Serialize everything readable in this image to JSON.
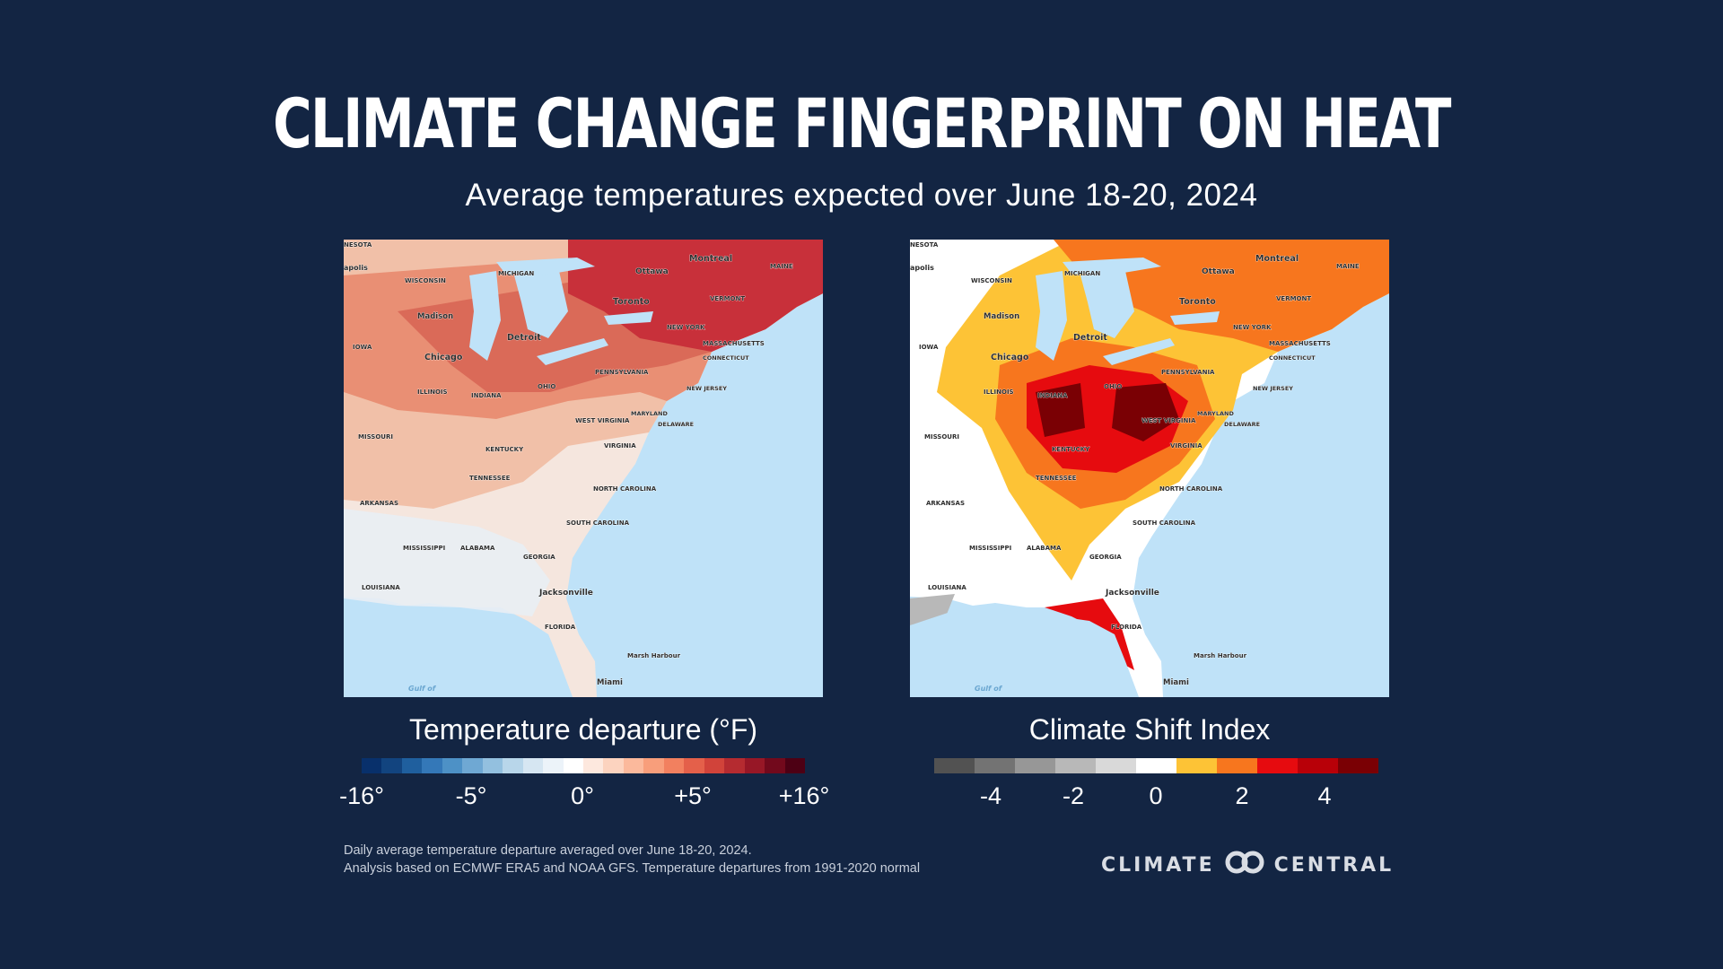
{
  "header": {
    "title": "Climate Change Fingerprint on Heat",
    "subtitle": "Average temperatures expected over June 18-20, 2024"
  },
  "maps": {
    "left": {
      "legend_title": "Temperature departure (°F)",
      "ticks": [
        "-16°",
        "-5°",
        "0°",
        "+5°",
        "+16°"
      ],
      "colors": [
        "#08306b",
        "#12447f",
        "#1f5f9e",
        "#3478b8",
        "#4d91c6",
        "#6fa8d3",
        "#93c0df",
        "#b8d6ea",
        "#d6e6f2",
        "#ecf3f9",
        "#ffffff",
        "#fde8de",
        "#fcd3bf",
        "#fbb99c",
        "#f89e7b",
        "#f2805f",
        "#e4604a",
        "#d1433a",
        "#b52b30",
        "#971726",
        "#72091c",
        "#4d0014"
      ]
    },
    "right": {
      "legend_title": "Climate Shift Index",
      "ticks": [
        "-4",
        "-2",
        "0",
        "2",
        "4"
      ],
      "colors": [
        "#525252",
        "#737373",
        "#979797",
        "#b8b8b8",
        "#d9d9d9",
        "#ffffff",
        "#fdc336",
        "#f7761e",
        "#e60b0f",
        "#b80008",
        "#7a0004"
      ]
    },
    "labels": {
      "nesota": "NESOTA",
      "apolis": "apolis",
      "wisconsin": "WISCONSIN",
      "michigan": "MICHIGAN",
      "montreal": "Montreal",
      "ottawa": "Ottawa",
      "maine": "MAINE",
      "vermont": "VERMONT",
      "toronto": "Toronto",
      "madison": "Madison",
      "detroit": "Detroit",
      "new_york": "NEW YORK",
      "massachusetts": "MASSACHUSETTS",
      "connecticut": "CONNECTICUT",
      "iowa": "IOWA",
      "chicago": "Chicago",
      "pennsylvania": "PENNSYLVANIA",
      "illinois": "ILLINOIS",
      "indiana": "INDIANA",
      "ohio": "OHIO",
      "new_jersey": "NEW JERSEY",
      "maryland": "MARYLAND",
      "delaware": "DELAWARE",
      "west_virginia": "WEST VIRGINIA",
      "missouri": "MISSOURI",
      "kentucky": "KENTUCKY",
      "virginia": "VIRGINIA",
      "tennessee": "TENNESSEE",
      "north_carolina": "NORTH CAROLINA",
      "arkansas": "ARKANSAS",
      "south_carolina": "SOUTH CAROLINA",
      "mississippi": "MISSISSIPPI",
      "alabama": "ALABAMA",
      "georgia": "GEORGIA",
      "louisiana": "LOUISIANA",
      "jacksonville": "Jacksonville",
      "florida": "FLORIDA",
      "marsh_harbour": "Marsh Harbour",
      "miami": "Miami",
      "gulf_of": "Gulf of"
    }
  },
  "footnote": {
    "line1": "Daily average temperature departure averaged over June 18-20, 2024.",
    "line2": "Analysis based on ECMWF ERA5 and NOAA GFS. Temperature departures from 1991-2020 normal"
  },
  "brand": {
    "left": "CLIMATE",
    "right": "CENTRAL"
  }
}
